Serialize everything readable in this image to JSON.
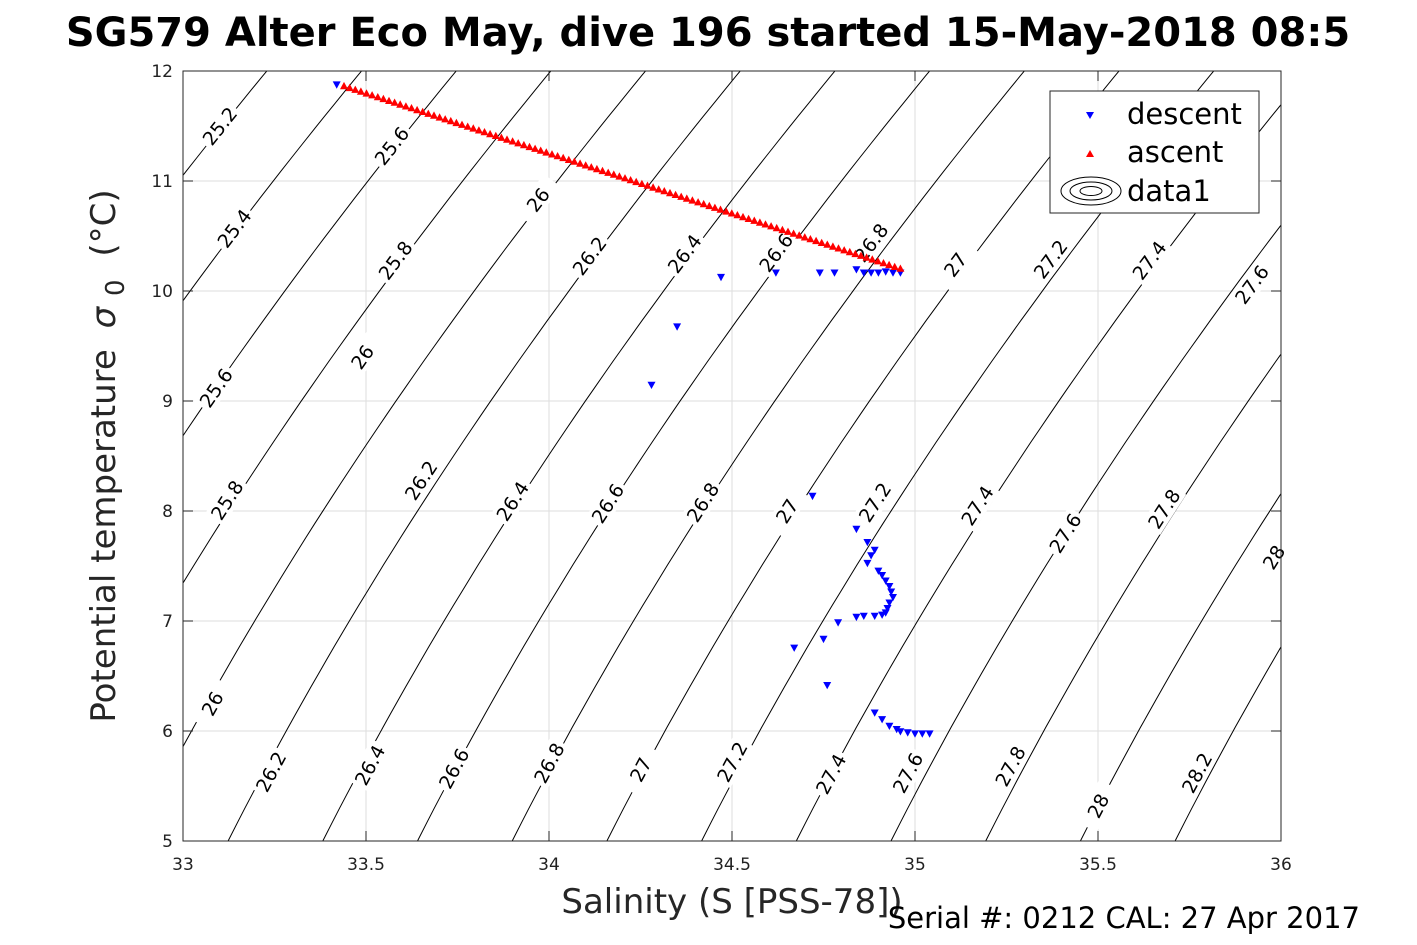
{
  "chart_data": {
    "type": "scatter",
    "title": "SG579 Alter Eco May, dive 196 started 15-May-2018 08:5",
    "xlabel": "Salinity (S [PSS-78])",
    "ylabel": "Potential temperature σ₀ (°C)",
    "ylabel_main": "Potential temperature",
    "ylabel_sigma": "σ",
    "ylabel_sub": "0",
    "ylabel_unit": "(°C)",
    "xlim": [
      33,
      36
    ],
    "ylim": [
      5,
      12
    ],
    "xticks": [
      "33",
      "33.5",
      "34",
      "34.5",
      "35",
      "35.5",
      "36"
    ],
    "yticks": [
      "5",
      "6",
      "7",
      "8",
      "9",
      "10",
      "11",
      "12"
    ],
    "grid": true,
    "legend_position": "top-right",
    "legend": [
      "descent",
      "ascent",
      "data1"
    ],
    "footer": "Serial #: 0212  CAL: 27 Apr 2017",
    "colors": {
      "descent": "#0000ff",
      "ascent": "#ff0000",
      "contour": "#000000"
    },
    "series": [
      {
        "name": "descent",
        "marker": "triangle-down",
        "points": [
          [
            33.42,
            11.88
          ],
          [
            34.47,
            10.13
          ],
          [
            34.35,
            9.68
          ],
          [
            34.28,
            9.15
          ],
          [
            34.62,
            10.17
          ],
          [
            34.74,
            10.17
          ],
          [
            34.78,
            10.17
          ],
          [
            34.84,
            10.2
          ],
          [
            34.86,
            10.17
          ],
          [
            34.88,
            10.17
          ],
          [
            34.9,
            10.17
          ],
          [
            34.92,
            10.18
          ],
          [
            34.94,
            10.17
          ],
          [
            34.96,
            10.17
          ],
          [
            34.72,
            8.14
          ],
          [
            34.84,
            7.84
          ],
          [
            34.87,
            7.72
          ],
          [
            34.89,
            7.65
          ],
          [
            34.88,
            7.6
          ],
          [
            34.87,
            7.53
          ],
          [
            34.9,
            7.46
          ],
          [
            34.91,
            7.42
          ],
          [
            34.92,
            7.37
          ],
          [
            34.93,
            7.32
          ],
          [
            34.935,
            7.27
          ],
          [
            34.94,
            7.22
          ],
          [
            34.93,
            7.17
          ],
          [
            34.925,
            7.12
          ],
          [
            34.92,
            7.08
          ],
          [
            34.91,
            7.06
          ],
          [
            34.89,
            7.05
          ],
          [
            34.86,
            7.05
          ],
          [
            34.84,
            7.04
          ],
          [
            34.79,
            6.99
          ],
          [
            34.75,
            6.84
          ],
          [
            34.67,
            6.76
          ],
          [
            34.76,
            6.42
          ],
          [
            34.89,
            6.17
          ],
          [
            34.91,
            6.11
          ],
          [
            34.93,
            6.05
          ],
          [
            34.95,
            6.02
          ],
          [
            34.96,
            6.0
          ],
          [
            34.98,
            5.99
          ],
          [
            35.0,
            5.98
          ],
          [
            35.02,
            5.98
          ],
          [
            35.04,
            5.98
          ]
        ]
      },
      {
        "name": "ascent",
        "marker": "triangle-up",
        "from": [
          33.44,
          11.86
        ],
        "to": [
          34.96,
          10.2
        ],
        "count": 100
      }
    ],
    "contours": [
      {
        "level": 25.2,
        "labels": [
          [
            33.1,
            11.5
          ]
        ]
      },
      {
        "level": 25.4,
        "labels": [
          [
            33.14,
            10.57
          ]
        ]
      },
      {
        "level": 25.6,
        "labels": [
          [
            33.57,
            11.32
          ],
          [
            33.09,
            9.12
          ]
        ]
      },
      {
        "level": 25.8,
        "labels": [
          [
            33.58,
            10.28
          ],
          [
            33.12,
            8.1
          ]
        ]
      },
      {
        "level": 26,
        "labels": [
          [
            33.97,
            10.83
          ],
          [
            33.49,
            9.4
          ],
          [
            33.08,
            6.25
          ]
        ]
      },
      {
        "level": 26.2,
        "labels": [
          [
            34.11,
            10.32
          ],
          [
            33.65,
            8.28
          ],
          [
            33.24,
            5.63
          ]
        ]
      },
      {
        "level": 26.4,
        "labels": [
          [
            34.37,
            10.34
          ],
          [
            33.9,
            8.09
          ],
          [
            33.51,
            5.69
          ]
        ]
      },
      {
        "level": 26.6,
        "labels": [
          [
            34.62,
            10.35
          ],
          [
            34.16,
            8.07
          ],
          [
            33.74,
            5.66
          ]
        ]
      },
      {
        "level": 26.8,
        "labels": [
          [
            34.88,
            10.44
          ],
          [
            34.42,
            8.08
          ],
          [
            34.0,
            5.71
          ]
        ]
      },
      {
        "level": 27,
        "labels": [
          [
            35.11,
            10.24
          ],
          [
            34.65,
            8.0
          ],
          [
            34.25,
            5.65
          ]
        ]
      },
      {
        "level": 27.2,
        "labels": [
          [
            35.37,
            10.29
          ],
          [
            34.89,
            8.08
          ],
          [
            34.5,
            5.72
          ]
        ]
      },
      {
        "level": 27.4,
        "labels": [
          [
            35.64,
            10.28
          ],
          [
            35.17,
            8.05
          ],
          [
            34.77,
            5.61
          ]
        ]
      },
      {
        "level": 27.6,
        "labels": [
          [
            35.92,
            10.06
          ],
          [
            35.41,
            7.8
          ],
          [
            34.98,
            5.62
          ]
        ]
      },
      {
        "level": 27.8,
        "labels": [
          [
            35.68,
            8.02
          ],
          [
            35.26,
            5.68
          ]
        ]
      },
      {
        "level": 28,
        "labels": [
          [
            35.98,
            7.58
          ],
          [
            35.5,
            5.32
          ]
        ]
      },
      {
        "level": 28.2,
        "labels": [
          [
            35.77,
            5.62
          ]
        ]
      }
    ]
  }
}
